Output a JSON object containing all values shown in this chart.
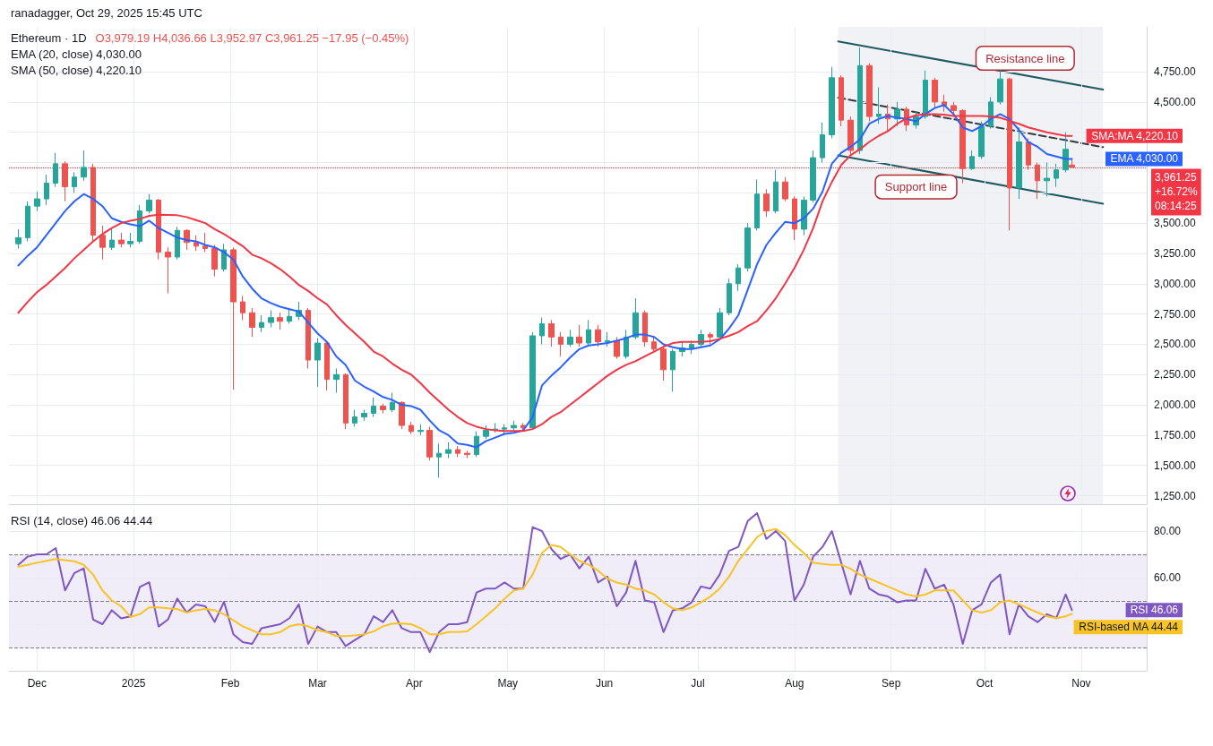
{
  "chart_data": [
    {
      "type": "candlestick",
      "subtitle": "ranadagger, Oct 29, 2025 15:45 UTC",
      "title": "Ethereum · 1D",
      "annotations": [
        "O3,979.19 H4,036.66 L3,952.97 C3,961.25 −17.95 (−0.45%)",
        "EMA (20, close) 4,030.00",
        "SMA (50, close) 4,220.10",
        {
          "text": "Resistance line",
          "x": "2025-10-14",
          "y": 4720
        },
        {
          "text": "Support line",
          "x": "2025-09-09",
          "y": 3940
        }
      ],
      "x": [
        "2024-11-25",
        "2024-11-28",
        "2024-12-01",
        "2024-12-04",
        "2024-12-07",
        "2024-12-10",
        "2024-12-13",
        "2024-12-16",
        "2024-12-19",
        "2024-12-22",
        "2024-12-25",
        "2024-12-28",
        "2024-12-31",
        "2025-01-03",
        "2025-01-06",
        "2025-01-09",
        "2025-01-12",
        "2025-01-15",
        "2025-01-18",
        "2025-01-21",
        "2025-01-24",
        "2025-01-27",
        "2025-01-30",
        "2025-02-02",
        "2025-02-05",
        "2025-02-08",
        "2025-02-11",
        "2025-02-14",
        "2025-02-17",
        "2025-02-20",
        "2025-02-23",
        "2025-02-26",
        "2025-03-01",
        "2025-03-04",
        "2025-03-07",
        "2025-03-10",
        "2025-03-13",
        "2025-03-16",
        "2025-03-19",
        "2025-03-22",
        "2025-03-25",
        "2025-03-28",
        "2025-03-31",
        "2025-04-03",
        "2025-04-06",
        "2025-04-09",
        "2025-04-12",
        "2025-04-15",
        "2025-04-18",
        "2025-04-21",
        "2025-04-24",
        "2025-04-27",
        "2025-04-30",
        "2025-05-03",
        "2025-05-06",
        "2025-05-09",
        "2025-05-12",
        "2025-05-15",
        "2025-05-18",
        "2025-05-21",
        "2025-05-24",
        "2025-05-27",
        "2025-05-30",
        "2025-06-02",
        "2025-06-05",
        "2025-06-08",
        "2025-06-11",
        "2025-06-14",
        "2025-06-17",
        "2025-06-20",
        "2025-06-23",
        "2025-06-26",
        "2025-06-29",
        "2025-07-02",
        "2025-07-05",
        "2025-07-08",
        "2025-07-11",
        "2025-07-14",
        "2025-07-17",
        "2025-07-20",
        "2025-07-23",
        "2025-07-26",
        "2025-07-29",
        "2025-08-01",
        "2025-08-04",
        "2025-08-07",
        "2025-08-10",
        "2025-08-13",
        "2025-08-16",
        "2025-08-19",
        "2025-08-22",
        "2025-08-25",
        "2025-08-28",
        "2025-08-31",
        "2025-09-03",
        "2025-09-06",
        "2025-09-09",
        "2025-09-12",
        "2025-09-15",
        "2025-09-18",
        "2025-09-21",
        "2025-09-24",
        "2025-09-27",
        "2025-09-30",
        "2025-10-03",
        "2025-10-06",
        "2025-10-09",
        "2025-10-12",
        "2025-10-15",
        "2025-10-18",
        "2025-10-21",
        "2025-10-24",
        "2025-10-27",
        "2025-10-29"
      ],
      "ohlc": [
        [
          3330,
          3450,
          3290,
          3380
        ],
        [
          3380,
          3680,
          3350,
          3640
        ],
        [
          3640,
          3760,
          3600,
          3700
        ],
        [
          3700,
          3900,
          3650,
          3830
        ],
        [
          3830,
          4080,
          3800,
          3990
        ],
        [
          3990,
          4010,
          3680,
          3800
        ],
        [
          3800,
          3920,
          3750,
          3880
        ],
        [
          3880,
          4100,
          3850,
          3960
        ],
        [
          3960,
          3990,
          3350,
          3400
        ],
        [
          3400,
          3480,
          3200,
          3300
        ],
        [
          3300,
          3450,
          3280,
          3360
        ],
        [
          3360,
          3420,
          3300,
          3330
        ],
        [
          3330,
          3420,
          3300,
          3350
        ],
        [
          3350,
          3650,
          3330,
          3600
        ],
        [
          3600,
          3740,
          3580,
          3690
        ],
        [
          3690,
          3700,
          3200,
          3260
        ],
        [
          3260,
          3300,
          2920,
          3220
        ],
        [
          3220,
          3470,
          3200,
          3440
        ],
        [
          3440,
          3450,
          3280,
          3340
        ],
        [
          3340,
          3400,
          3270,
          3310
        ],
        [
          3310,
          3420,
          3260,
          3290
        ],
        [
          3290,
          3320,
          3060,
          3120
        ],
        [
          3120,
          3330,
          3100,
          3280
        ],
        [
          3280,
          3300,
          2125,
          2850
        ],
        [
          2850,
          2900,
          2700,
          2760
        ],
        [
          2760,
          2800,
          2560,
          2640
        ],
        [
          2640,
          2740,
          2600,
          2680
        ],
        [
          2680,
          2780,
          2640,
          2720
        ],
        [
          2720,
          2760,
          2620,
          2690
        ],
        [
          2690,
          2800,
          2670,
          2730
        ],
        [
          2730,
          2850,
          2700,
          2780
        ],
        [
          2780,
          2800,
          2300,
          2370
        ],
        [
          2370,
          2550,
          2150,
          2510
        ],
        [
          2510,
          2520,
          2120,
          2210
        ],
        [
          2210,
          2300,
          2100,
          2250
        ],
        [
          2250,
          2260,
          1800,
          1850
        ],
        [
          1850,
          1960,
          1820,
          1900
        ],
        [
          1900,
          1960,
          1870,
          1930
        ],
        [
          1930,
          2060,
          1900,
          1990
        ],
        [
          1990,
          2010,
          1930,
          1960
        ],
        [
          1960,
          2100,
          1940,
          2020
        ],
        [
          2020,
          2030,
          1800,
          1830
        ],
        [
          1830,
          1860,
          1760,
          1780
        ],
        [
          1780,
          1840,
          1750,
          1790
        ],
        [
          1790,
          1820,
          1540,
          1570
        ],
        [
          1570,
          1680,
          1400,
          1600
        ],
        [
          1600,
          1690,
          1560,
          1630
        ],
        [
          1630,
          1660,
          1570,
          1600
        ],
        [
          1600,
          1620,
          1560,
          1590
        ],
        [
          1590,
          1780,
          1570,
          1740
        ],
        [
          1740,
          1830,
          1720,
          1790
        ],
        [
          1790,
          1850,
          1770,
          1800
        ],
        [
          1800,
          1840,
          1750,
          1810
        ],
        [
          1810,
          1870,
          1790,
          1830
        ],
        [
          1830,
          1850,
          1780,
          1810
        ],
        [
          1810,
          2600,
          1800,
          2570
        ],
        [
          2570,
          2720,
          2500,
          2670
        ],
        [
          2670,
          2700,
          2480,
          2560
        ],
        [
          2560,
          2600,
          2400,
          2500
        ],
        [
          2500,
          2620,
          2480,
          2560
        ],
        [
          2560,
          2660,
          2480,
          2510
        ],
        [
          2510,
          2700,
          2490,
          2620
        ],
        [
          2620,
          2660,
          2480,
          2520
        ],
        [
          2520,
          2600,
          2480,
          2530
        ],
        [
          2530,
          2560,
          2380,
          2400
        ],
        [
          2400,
          2620,
          2380,
          2560
        ],
        [
          2560,
          2880,
          2540,
          2760
        ],
        [
          2760,
          2780,
          2480,
          2520
        ],
        [
          2520,
          2560,
          2440,
          2460
        ],
        [
          2460,
          2480,
          2200,
          2290
        ],
        [
          2290,
          2460,
          2110,
          2440
        ],
        [
          2440,
          2520,
          2400,
          2470
        ],
        [
          2470,
          2530,
          2420,
          2500
        ],
        [
          2500,
          2620,
          2480,
          2580
        ],
        [
          2580,
          2600,
          2500,
          2560
        ],
        [
          2560,
          2800,
          2540,
          2760
        ],
        [
          2760,
          3040,
          2740,
          3000
        ],
        [
          3000,
          3160,
          2940,
          3130
        ],
        [
          3130,
          3500,
          3100,
          3460
        ],
        [
          3460,
          3860,
          3440,
          3740
        ],
        [
          3740,
          3780,
          3550,
          3600
        ],
        [
          3600,
          3940,
          3580,
          3840
        ],
        [
          3840,
          3880,
          3680,
          3700
        ],
        [
          3700,
          3720,
          3360,
          3450
        ],
        [
          3450,
          3720,
          3400,
          3690
        ],
        [
          3690,
          4100,
          3670,
          4040
        ],
        [
          4040,
          4330,
          4000,
          4230
        ],
        [
          4230,
          4790,
          4200,
          4700
        ],
        [
          4700,
          4720,
          4300,
          4350
        ],
        [
          4350,
          4380,
          4060,
          4100
        ],
        [
          4100,
          4950,
          4070,
          4800
        ],
        [
          4800,
          4820,
          4340,
          4380
        ],
        [
          4380,
          4620,
          4320,
          4400
        ],
        [
          4400,
          4480,
          4260,
          4360
        ],
        [
          4360,
          4500,
          4300,
          4440
        ],
        [
          4440,
          4460,
          4260,
          4310
        ],
        [
          4310,
          4420,
          4280,
          4380
        ],
        [
          4380,
          4760,
          4360,
          4680
        ],
        [
          4680,
          4700,
          4450,
          4500
        ],
        [
          4500,
          4560,
          4420,
          4470
        ],
        [
          4470,
          4500,
          4400,
          4430
        ],
        [
          4430,
          4440,
          3830,
          3950
        ],
        [
          3950,
          4100,
          3940,
          4050
        ],
        [
          4050,
          4340,
          4030,
          4300
        ],
        [
          4300,
          4540,
          4280,
          4500
        ],
        [
          4500,
          4760,
          4480,
          4690
        ],
        [
          4690,
          4700,
          3440,
          3790
        ],
        [
          3790,
          4290,
          3700,
          4170
        ],
        [
          4170,
          4200,
          3940,
          3980
        ],
        [
          3980,
          4000,
          3700,
          3850
        ],
        [
          3850,
          4000,
          3720,
          3870
        ],
        [
          3870,
          3990,
          3800,
          3940
        ],
        [
          3940,
          4250,
          3920,
          4110
        ],
        [
          3979.19,
          4036.66,
          3952.97,
          3961.25
        ]
      ],
      "colors": [
        "#26a69a",
        "#26a69a",
        "#26a69a",
        "#26a69a",
        "#26a69a",
        "#ef5350",
        "#26a69a",
        "#26a69a",
        "#ef5350",
        "#ef5350",
        "#26a69a",
        "#ef5350",
        "#26a69a",
        "#26a69a",
        "#26a69a",
        "#ef5350",
        "#ef5350",
        "#26a69a",
        "#ef5350",
        "#ef5350",
        "#ef5350",
        "#ef5350",
        "#26a69a",
        "#ef5350",
        "#ef5350",
        "#ef5350",
        "#26a69a",
        "#26a69a",
        "#ef5350",
        "#26a69a",
        "#26a69a",
        "#ef5350",
        "#26a69a",
        "#ef5350",
        "#26a69a",
        "#ef5350",
        "#26a69a",
        "#26a69a",
        "#26a69a",
        "#ef5350",
        "#26a69a",
        "#ef5350",
        "#ef5350",
        "#26a69a",
        "#ef5350",
        "#26a69a",
        "#26a69a",
        "#ef5350",
        "#ef5350",
        "#26a69a",
        "#26a69a",
        "#26a69a",
        "#26a69a",
        "#26a69a",
        "#ef5350",
        "#26a69a",
        "#26a69a",
        "#ef5350",
        "#ef5350",
        "#26a69a",
        "#ef5350",
        "#26a69a",
        "#ef5350",
        "#26a69a",
        "#ef5350",
        "#26a69a",
        "#26a69a",
        "#ef5350",
        "#ef5350",
        "#ef5350",
        "#26a69a",
        "#26a69a",
        "#26a69a",
        "#26a69a",
        "#ef5350",
        "#26a69a",
        "#26a69a",
        "#26a69a",
        "#26a69a",
        "#26a69a",
        "#ef5350",
        "#26a69a",
        "#ef5350",
        "#ef5350",
        "#26a69a",
        "#26a69a",
        "#26a69a",
        "#26a69a",
        "#ef5350",
        "#ef5350",
        "#26a69a",
        "#ef5350",
        "#26a69a",
        "#ef5350",
        "#26a69a",
        "#ef5350",
        "#26a69a",
        "#26a69a",
        "#ef5350",
        "#ef5350",
        "#ef5350",
        "#ef5350",
        "#26a69a",
        "#26a69a",
        "#26a69a",
        "#26a69a",
        "#ef5350",
        "#26a69a",
        "#ef5350",
        "#ef5350",
        "#26a69a",
        "#26a69a",
        "#26a69a",
        "#ef5350"
      ],
      "series": [
        {
          "type": "line",
          "name": "EMA",
          "color": "#2962ff",
          "values": [
            3150,
            3230,
            3300,
            3400,
            3500,
            3600,
            3680,
            3740,
            3700,
            3640,
            3540,
            3510,
            3490,
            3475,
            3520,
            3460,
            3420,
            3380,
            3360,
            3350,
            3320,
            3300,
            3260,
            3200,
            3060,
            2960,
            2880,
            2840,
            2810,
            2790,
            2770,
            2680,
            2590,
            2520,
            2400,
            2330,
            2200,
            2150,
            2110,
            2065,
            2040,
            2000,
            1990,
            1960,
            1870,
            1790,
            1750,
            1680,
            1670,
            1650,
            1700,
            1730,
            1760,
            1770,
            1790,
            1900,
            2160,
            2240,
            2310,
            2390,
            2460,
            2490,
            2500,
            2510,
            2530,
            2550,
            2580,
            2580,
            2560,
            2500,
            2475,
            2460,
            2460,
            2475,
            2490,
            2540,
            2630,
            2740,
            2950,
            3160,
            3320,
            3420,
            3510,
            3500,
            3540,
            3620,
            3760,
            3990,
            4080,
            4130,
            4190,
            4320,
            4360,
            4385,
            4370,
            4360,
            4340,
            4400,
            4450,
            4475,
            4400,
            4290,
            4260,
            4300,
            4360,
            4400,
            4360,
            4270,
            4170,
            4130,
            4070,
            4050,
            4030,
            4030.0
          ],
          "value_labels": [
            null,
            null,
            null,
            null,
            null,
            null,
            null,
            null,
            null,
            null,
            null,
            null,
            null,
            null,
            null,
            null,
            null,
            null,
            null,
            null,
            null,
            null,
            null,
            null,
            null,
            null,
            null,
            null,
            null,
            null,
            null,
            null,
            null,
            null,
            null,
            null,
            null,
            null,
            null,
            null,
            null,
            null,
            null,
            null,
            null,
            null,
            null,
            null,
            null,
            null,
            null,
            null,
            null,
            null,
            null,
            null,
            null,
            null,
            null,
            null,
            null,
            null,
            null,
            null,
            null,
            null,
            null,
            null,
            null,
            null,
            null,
            null,
            null,
            null,
            null,
            null,
            null,
            null,
            null,
            null,
            null,
            null,
            null,
            null,
            null,
            null,
            null,
            null,
            null,
            null,
            null,
            null,
            null,
            null,
            null,
            null,
            null,
            null,
            null,
            null,
            null,
            null,
            null,
            null,
            null,
            null,
            null,
            null,
            null,
            null,
            null,
            null,
            null,
            "4,030.00"
          ]
        },
        {
          "type": "line",
          "name": "SMA:MA",
          "color": "#f23645",
          "values": [
            2760,
            2850,
            2930,
            2990,
            3060,
            3130,
            3210,
            3280,
            3350,
            3410,
            3460,
            3500,
            3520,
            3535,
            3560,
            3570,
            3568,
            3565,
            3550,
            3525,
            3500,
            3450,
            3410,
            3360,
            3310,
            3240,
            3210,
            3170,
            3120,
            3060,
            2990,
            2940,
            2880,
            2830,
            2740,
            2660,
            2590,
            2520,
            2440,
            2400,
            2340,
            2290,
            2250,
            2180,
            2100,
            2030,
            1960,
            1900,
            1850,
            1820,
            1800,
            1790,
            1785,
            1785,
            1785,
            1800,
            1840,
            1900,
            1940,
            2000,
            2060,
            2120,
            2180,
            2240,
            2290,
            2330,
            2360,
            2400,
            2440,
            2480,
            2510,
            2520,
            2520,
            2520,
            2525,
            2545,
            2570,
            2600,
            2650,
            2690,
            2780,
            2880,
            3000,
            3130,
            3280,
            3460,
            3680,
            3840,
            3980,
            4060,
            4110,
            4170,
            4220,
            4260,
            4320,
            4365,
            4390,
            4400,
            4400,
            4395,
            4385,
            4385,
            4385,
            4385,
            4380,
            4370,
            4345,
            4320,
            4290,
            4270,
            4250,
            4235,
            4220,
            4220.1
          ],
          "value_labels": [
            null,
            null,
            null,
            null,
            null,
            null,
            null,
            null,
            null,
            null,
            null,
            null,
            null,
            null,
            null,
            null,
            null,
            null,
            null,
            null,
            null,
            null,
            null,
            null,
            null,
            null,
            null,
            null,
            null,
            null,
            null,
            null,
            null,
            null,
            null,
            null,
            null,
            null,
            null,
            null,
            null,
            null,
            null,
            null,
            null,
            null,
            null,
            null,
            null,
            null,
            null,
            null,
            null,
            null,
            null,
            null,
            null,
            null,
            null,
            null,
            null,
            null,
            null,
            null,
            null,
            null,
            null,
            null,
            null,
            null,
            null,
            null,
            null,
            null,
            null,
            null,
            null,
            null,
            null,
            null,
            null,
            null,
            null,
            null,
            null,
            null,
            null,
            null,
            null,
            null,
            null,
            null,
            null,
            null,
            null,
            null,
            null,
            null,
            null,
            null,
            null,
            null,
            null,
            null,
            null,
            null,
            null,
            null,
            null,
            null,
            null,
            null,
            null,
            "4,220.10"
          ]
        },
        {
          "type": "line",
          "color": "#1e5962",
          "x": [
            "2025-08-15",
            "2025-11-08"
          ],
          "values": [
            5000,
            4602
          ]
        },
        {
          "type": "line",
          "color": "#1e5962",
          "x": [
            "2025-08-15",
            "2025-11-08"
          ],
          "values": [
            4060,
            3660
          ]
        },
        {
          "type": "line",
          "color": "#363a45",
          "line_style": "dashed",
          "x": [
            "2025-08-15",
            "2025-11-08"
          ],
          "values": [
            4535,
            4127
          ]
        }
      ],
      "ref_lines": [
        {
          "axis": "y",
          "value": 3961.25,
          "label": "3,961.25\n+16.72%\n08:14:25",
          "color": "#f23645",
          "line_style": "dotted"
        }
      ],
      "bands": [
        {
          "axis": "x",
          "from": "2025-08-15",
          "to": "2025-11-08",
          "color": "#f0f2f5"
        }
      ],
      "xlim": [
        "2024-11-22",
        "2025-11-22"
      ],
      "xticks": [
        {
          "value": "2024-12-01",
          "label": null
        },
        {
          "value": "2025-01-01",
          "label": null
        },
        {
          "value": "2025-02-01",
          "label": null
        },
        {
          "value": "2025-03-01",
          "label": null
        },
        {
          "value": "2025-04-01",
          "label": null
        },
        {
          "value": "2025-05-01",
          "label": null
        },
        {
          "value": "2025-06-01",
          "label": null
        },
        {
          "value": "2025-07-01",
          "label": null
        },
        {
          "value": "2025-08-01",
          "label": null
        },
        {
          "value": "2025-09-01",
          "label": null
        },
        {
          "value": "2025-10-01",
          "label": null
        },
        {
          "value": "2025-11-01",
          "label": null
        }
      ],
      "ylim": [
        1180,
        5120
      ],
      "yticks": [
        {
          "value": 1250,
          "label": "1,250.00"
        },
        {
          "value": 1500,
          "label": "1,500.00"
        },
        {
          "value": 1750,
          "label": "1,750.00"
        },
        {
          "value": 2000,
          "label": "2,000.00"
        },
        {
          "value": 2250,
          "label": "2,250.00"
        },
        {
          "value": 2500,
          "label": "2,500.00"
        },
        {
          "value": 2750,
          "label": "2,750.00"
        },
        {
          "value": 3000,
          "label": "3,000.00"
        },
        {
          "value": 3250,
          "label": "3,250.00"
        },
        {
          "value": 3500,
          "label": "3,500.00"
        },
        {
          "value": 3750,
          "label": null
        },
        {
          "value": 4000,
          "label": null
        },
        {
          "value": 4250,
          "label": null
        },
        {
          "value": 4500,
          "label": "4,500.00"
        },
        {
          "value": 4750,
          "label": "4,750.00"
        }
      ],
      "grid": true,
      "tick_labels": "y"
    },
    {
      "type": "line",
      "title": "RSI (14, close) 46.06 44.44",
      "x": [
        "2024-11-25",
        "2024-11-28",
        "2024-12-01",
        "2024-12-04",
        "2024-12-07",
        "2024-12-10",
        "2024-12-13",
        "2024-12-16",
        "2024-12-19",
        "2024-12-22",
        "2024-12-25",
        "2024-12-28",
        "2024-12-31",
        "2025-01-03",
        "2025-01-06",
        "2025-01-09",
        "2025-01-12",
        "2025-01-15",
        "2025-01-18",
        "2025-01-21",
        "2025-01-24",
        "2025-01-27",
        "2025-01-30",
        "2025-02-02",
        "2025-02-05",
        "2025-02-08",
        "2025-02-11",
        "2025-02-14",
        "2025-02-17",
        "2025-02-20",
        "2025-02-23",
        "2025-02-26",
        "2025-03-01",
        "2025-03-04",
        "2025-03-07",
        "2025-03-10",
        "2025-03-13",
        "2025-03-16",
        "2025-03-19",
        "2025-03-22",
        "2025-03-25",
        "2025-03-28",
        "2025-03-31",
        "2025-04-03",
        "2025-04-06",
        "2025-04-09",
        "2025-04-12",
        "2025-04-15",
        "2025-04-18",
        "2025-04-21",
        "2025-04-24",
        "2025-04-27",
        "2025-04-30",
        "2025-05-03",
        "2025-05-06",
        "2025-05-09",
        "2025-05-12",
        "2025-05-15",
        "2025-05-18",
        "2025-05-21",
        "2025-05-24",
        "2025-05-27",
        "2025-05-30",
        "2025-06-02",
        "2025-06-05",
        "2025-06-08",
        "2025-06-11",
        "2025-06-14",
        "2025-06-17",
        "2025-06-20",
        "2025-06-23",
        "2025-06-26",
        "2025-06-29",
        "2025-07-02",
        "2025-07-05",
        "2025-07-08",
        "2025-07-11",
        "2025-07-14",
        "2025-07-17",
        "2025-07-20",
        "2025-07-23",
        "2025-07-26",
        "2025-07-29",
        "2025-08-01",
        "2025-08-04",
        "2025-08-07",
        "2025-08-10",
        "2025-08-13",
        "2025-08-16",
        "2025-08-19",
        "2025-08-22",
        "2025-08-25",
        "2025-08-28",
        "2025-08-31",
        "2025-09-03",
        "2025-09-06",
        "2025-09-09",
        "2025-09-12",
        "2025-09-15",
        "2025-09-18",
        "2025-09-21",
        "2025-09-24",
        "2025-09-27",
        "2025-09-30",
        "2025-10-03",
        "2025-10-06",
        "2025-10-09",
        "2025-10-12",
        "2025-10-15",
        "2025-10-18",
        "2025-10-21",
        "2025-10-24",
        "2025-10-27",
        "2025-10-29"
      ],
      "series": [
        {
          "name": "RSI",
          "color": "#7e57c2",
          "values": [
            65.5,
            69,
            70,
            70,
            72.7,
            54.5,
            62,
            64,
            42,
            40,
            46,
            42.5,
            43.4,
            56,
            58,
            39,
            42,
            51,
            45,
            48.5,
            47.7,
            41,
            49.6,
            35.7,
            32.3,
            31.5,
            38.3,
            39.1,
            40,
            42.6,
            48.5,
            31.5,
            39,
            36.6,
            36.6,
            30.6,
            33.2,
            35.7,
            43.4,
            40.9,
            46,
            38.3,
            36.6,
            36.6,
            28,
            36.6,
            40,
            40,
            40.9,
            53.6,
            55.3,
            55.3,
            57.9,
            55.3,
            55.3,
            81.7,
            80,
            72.3,
            68,
            70,
            64,
            69,
            57.9,
            60.4,
            47.7,
            53.6,
            67.2,
            50.2,
            49.4,
            36.6,
            46,
            46.8,
            49.4,
            56.2,
            55.3,
            61.3,
            71.5,
            73.2,
            84.3,
            87.7,
            76.6,
            80,
            75.7,
            50.2,
            57,
            69,
            73.2,
            80,
            66.4,
            52.8,
            67.2,
            55.3,
            52.8,
            51.9,
            49.4,
            50.2,
            50.2,
            63.8,
            55.3,
            57,
            48.5,
            31.5,
            46,
            48.5,
            57.9,
            61.3,
            35.7,
            48.5,
            43.4,
            40.9,
            44.3,
            42.6,
            52.8,
            46.06
          ],
          "value_labels": [
            null,
            null,
            null,
            null,
            null,
            null,
            null,
            null,
            null,
            null,
            null,
            null,
            null,
            null,
            null,
            null,
            null,
            null,
            null,
            null,
            null,
            null,
            null,
            null,
            null,
            null,
            null,
            null,
            null,
            null,
            null,
            null,
            null,
            null,
            null,
            null,
            null,
            null,
            null,
            null,
            null,
            null,
            null,
            null,
            null,
            null,
            null,
            null,
            null,
            null,
            null,
            null,
            null,
            null,
            null,
            null,
            null,
            null,
            null,
            null,
            null,
            null,
            null,
            null,
            null,
            null,
            null,
            null,
            null,
            null,
            null,
            null,
            null,
            null,
            null,
            null,
            null,
            null,
            null,
            null,
            null,
            null,
            null,
            null,
            null,
            null,
            null,
            null,
            null,
            null,
            null,
            null,
            null,
            null,
            null,
            null,
            null,
            null,
            null,
            null,
            null,
            null,
            null,
            null,
            null,
            null,
            null,
            null,
            null,
            null,
            null,
            null,
            null,
            "46.06"
          ]
        },
        {
          "name": "RSI-based MA",
          "color": "#f7c325",
          "values": [
            64.7,
            65.5,
            66.4,
            67.2,
            68,
            67.5,
            67,
            65.5,
            61.3,
            54.5,
            50.2,
            47.7,
            43.1,
            44.3,
            47.2,
            47.2,
            46.8,
            46.5,
            45,
            46,
            46.5,
            46,
            44.3,
            41.7,
            39.1,
            37.4,
            35.7,
            35.7,
            36.6,
            39.1,
            40,
            39.1,
            37.4,
            36.6,
            34.9,
            34.9,
            35.2,
            35.7,
            36.9,
            39.1,
            40.3,
            40.3,
            40,
            38.3,
            35.7,
            35.7,
            36.6,
            36.6,
            36.9,
            40,
            43.4,
            46.8,
            51,
            54.5,
            55.3,
            61.3,
            70.6,
            74,
            73.2,
            70,
            67.2,
            65.5,
            63,
            59.6,
            57.9,
            57,
            55.3,
            54.5,
            52.8,
            49.4,
            46.8,
            46,
            47.2,
            49.4,
            51.9,
            55.3,
            60.4,
            67.2,
            72.3,
            77.4,
            80,
            80.9,
            78.3,
            74,
            70.6,
            66.4,
            65.9,
            65.5,
            65.5,
            63.8,
            61.3,
            59.6,
            57.9,
            56.2,
            54.5,
            52.8,
            51.9,
            52.8,
            54.5,
            54.5,
            54.5,
            50.2,
            46,
            45,
            46,
            49.4,
            50.2,
            48.5,
            46.8,
            45,
            43.4,
            42.6,
            43.4,
            44.44
          ],
          "value_labels": [
            null,
            null,
            null,
            null,
            null,
            null,
            null,
            null,
            null,
            null,
            null,
            null,
            null,
            null,
            null,
            null,
            null,
            null,
            null,
            null,
            null,
            null,
            null,
            null,
            null,
            null,
            null,
            null,
            null,
            null,
            null,
            null,
            null,
            null,
            null,
            null,
            null,
            null,
            null,
            null,
            null,
            null,
            null,
            null,
            null,
            null,
            null,
            null,
            null,
            null,
            null,
            null,
            null,
            null,
            null,
            null,
            null,
            null,
            null,
            null,
            null,
            null,
            null,
            null,
            null,
            null,
            null,
            null,
            null,
            null,
            null,
            null,
            null,
            null,
            null,
            null,
            null,
            null,
            null,
            null,
            null,
            null,
            null,
            null,
            null,
            null,
            null,
            null,
            null,
            null,
            null,
            null,
            null,
            null,
            null,
            null,
            null,
            null,
            null,
            null,
            null,
            null,
            null,
            null,
            null,
            null,
            null,
            null,
            null,
            null,
            null,
            null,
            null,
            "44.44"
          ]
        }
      ],
      "ref_lines": [
        {
          "axis": "y",
          "value": 70,
          "color": "#787b86",
          "line_style": "dashed"
        },
        {
          "axis": "y",
          "value": 50,
          "color": "#787b86",
          "line_style": "dashed"
        },
        {
          "axis": "y",
          "value": 30,
          "color": "#787b86",
          "line_style": "dashed"
        }
      ],
      "bands": [
        {
          "axis": "y",
          "from": 30,
          "to": 70,
          "color": "#f0ecf8"
        }
      ],
      "xlim": [
        "2024-11-22",
        "2025-11-22"
      ],
      "xticks": [
        {
          "value": "2024-12-01",
          "label": "Dec"
        },
        {
          "value": "2025-01-01",
          "label": "2025"
        },
        {
          "value": "2025-02-01",
          "label": "Feb"
        },
        {
          "value": "2025-03-01",
          "label": "Mar"
        },
        {
          "value": "2025-04-01",
          "label": "Apr"
        },
        {
          "value": "2025-05-01",
          "label": "May"
        },
        {
          "value": "2025-06-01",
          "label": "Jun"
        },
        {
          "value": "2025-07-01",
          "label": "Jul"
        },
        {
          "value": "2025-08-01",
          "label": "Aug"
        },
        {
          "value": "2025-09-01",
          "label": "Sep"
        },
        {
          "value": "2025-10-01",
          "label": "Oct"
        },
        {
          "value": "2025-11-01",
          "label": "Nov"
        }
      ],
      "ylim": [
        20,
        90
      ],
      "yticks": [
        {
          "value": 40,
          "label": null
        },
        {
          "value": 60,
          "label": "60.00"
        },
        {
          "value": 80,
          "label": "80.00"
        }
      ],
      "grid": true
    }
  ]
}
